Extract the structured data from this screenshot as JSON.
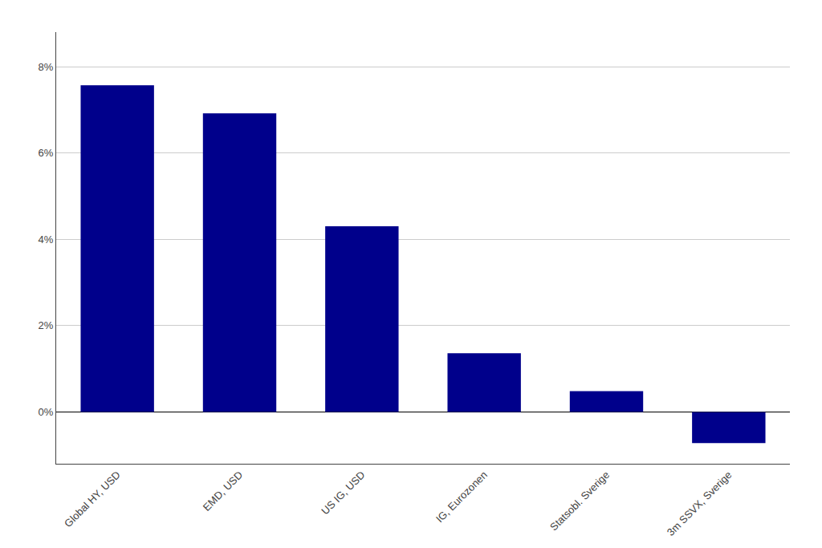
{
  "chart_data": {
    "type": "bar",
    "categories": [
      "Global HY, USD",
      "EMD, USD",
      "US IG, USD",
      "IG, Eurozonen",
      "Statsobl. Sverige",
      "3m SSVX, Sverige"
    ],
    "values": [
      7.57,
      6.92,
      4.3,
      1.36,
      0.48,
      -0.72
    ],
    "color": "#00008B",
    "ylim": [
      -1.2,
      8.8
    ],
    "yticks": [
      {
        "value": 0.0,
        "label": "0%"
      },
      {
        "value": 2.0,
        "label": "2%"
      },
      {
        "value": 4.0,
        "label": "4%"
      },
      {
        "value": 6.0,
        "label": "6%"
      },
      {
        "value": 8.0,
        "label": "8%"
      }
    ],
    "grid": true
  }
}
